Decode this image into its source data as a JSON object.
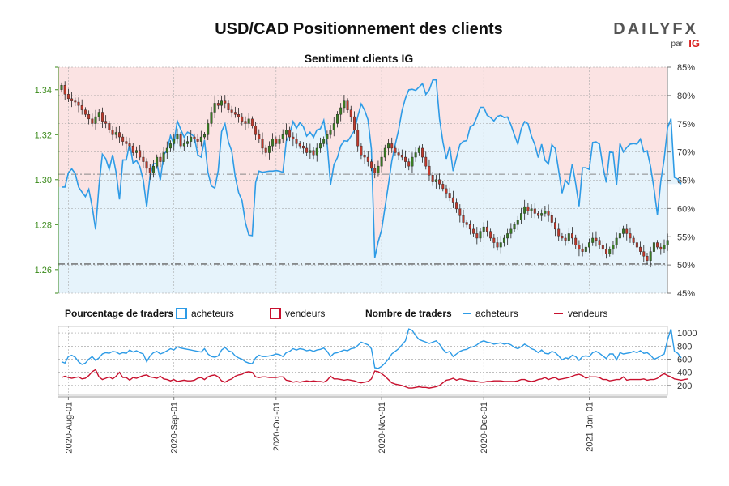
{
  "header": {
    "title": "USD/CAD Positionnement des clients",
    "logo_text": "DAILYFX",
    "logo_par": "par",
    "logo_ig": "IG"
  },
  "legend": {
    "pct_title": "Pourcentage de traders",
    "pct_buy": "acheteurs",
    "pct_sell": "vendeurs",
    "num_title": "Nombre de traders",
    "num_buy": "acheteurs",
    "num_sell": "vendeurs"
  },
  "colors": {
    "buy": "#2d9be6",
    "sell": "#c8102e",
    "up_candle": "#3a7d23",
    "down_candle": "#c0392b",
    "top_fill": "#fbe3e3",
    "bottom_fill": "#e6f3fb",
    "grid": "#c9c9c9",
    "price_axis": "#3a8a1a"
  },
  "chart_data": {
    "type": "candlestick",
    "title": "USD/CAD Positionnement des clients",
    "subtitle": "Sentiment clients IG",
    "x_labels": [
      "2020-Aug-01",
      "2020-Sep-01",
      "2020-Oct-01",
      "2020-Nov-01",
      "2020-Dec-01",
      "2021-Jan-01"
    ],
    "x_label_days": [
      2,
      33,
      63,
      94,
      124,
      155
    ],
    "total_days": 177,
    "price_axis": {
      "ticks": [
        "1.34",
        "1.32",
        "1.30",
        "1.28",
        "1.26"
      ],
      "tick_values": [
        1.34,
        1.32,
        1.3,
        1.28,
        1.26
      ],
      "range": [
        1.2495,
        1.35
      ]
    },
    "pct_axis": {
      "ticks": [
        "85%",
        "80%",
        "75%",
        "70%",
        "65%",
        "60%",
        "55%",
        "50%",
        "45%"
      ],
      "tick_values": [
        85,
        80,
        75,
        70,
        65,
        60,
        55,
        50,
        45
      ],
      "range": [
        45,
        85
      ]
    },
    "count_axis": {
      "ticks": [
        "1000",
        "800",
        "600",
        "400",
        "200"
      ],
      "tick_values": [
        1000,
        800,
        600,
        400,
        200
      ],
      "range": [
        50,
        1100
      ]
    },
    "reference_lines": {
      "price": [
        1.3024,
        1.2625
      ]
    },
    "series": [
      {
        "name": "USD/CAD",
        "kind": "candles",
        "close": [
          1.342,
          1.338,
          1.336,
          1.335,
          1.3345,
          1.333,
          1.331,
          1.329,
          1.327,
          1.325,
          1.328,
          1.33,
          1.326,
          1.325,
          1.322,
          1.32,
          1.321,
          1.319,
          1.317,
          1.316,
          1.315,
          1.312,
          1.313,
          1.31,
          1.308,
          1.305,
          1.303,
          1.306,
          1.31,
          1.308,
          1.312,
          1.314,
          1.316,
          1.318,
          1.32,
          1.315,
          1.316,
          1.317,
          1.319,
          1.318,
          1.317,
          1.319,
          1.32,
          1.325,
          1.33,
          1.334,
          1.333,
          1.335,
          1.334,
          1.331,
          1.33,
          1.329,
          1.328,
          1.326,
          1.325,
          1.327,
          1.324,
          1.32,
          1.318,
          1.314,
          1.312,
          1.315,
          1.318,
          1.316,
          1.318,
          1.32,
          1.322,
          1.319,
          1.318,
          1.316,
          1.315,
          1.314,
          1.312,
          1.313,
          1.311,
          1.314,
          1.316,
          1.318,
          1.32,
          1.322,
          1.325,
          1.329,
          1.332,
          1.335,
          1.331,
          1.328,
          1.322,
          1.315,
          1.311,
          1.31,
          1.308,
          1.305,
          1.303,
          1.306,
          1.31,
          1.314,
          1.316,
          1.314,
          1.312,
          1.311,
          1.31,
          1.308,
          1.306,
          1.31,
          1.312,
          1.314,
          1.31,
          1.306,
          1.302,
          1.299,
          1.3,
          1.298,
          1.296,
          1.294,
          1.292,
          1.29,
          1.287,
          1.284,
          1.281,
          1.28,
          1.278,
          1.276,
          1.274,
          1.277,
          1.279,
          1.277,
          1.274,
          1.272,
          1.27,
          1.272,
          1.274,
          1.276,
          1.278,
          1.28,
          1.282,
          1.285,
          1.288,
          1.286,
          1.287,
          1.285,
          1.284,
          1.285,
          1.286,
          1.284,
          1.281,
          1.278,
          1.275,
          1.274,
          1.273,
          1.276,
          1.274,
          1.271,
          1.269,
          1.268,
          1.27,
          1.272,
          1.274,
          1.273,
          1.271,
          1.269,
          1.267,
          1.269,
          1.271,
          1.274,
          1.276,
          1.278,
          1.276,
          1.274,
          1.272,
          1.27,
          1.268,
          1.266,
          1.264,
          1.268,
          1.272,
          1.27,
          1.269,
          1.271,
          1.273
        ]
      },
      {
        "name": "acheteurs %",
        "kind": "line",
        "axis": "pct",
        "values": [
          63.8,
          63.8,
          66.3,
          67.0,
          66.2,
          63.8,
          62.9,
          62.1,
          63.4,
          60.3,
          56.3,
          64.0,
          69.6,
          68.8,
          66.9,
          69.5,
          66.4,
          61.6,
          68.6,
          68.6,
          71.5,
          68.0,
          68.5,
          67.4,
          65.0,
          60.3,
          65.8,
          67.9,
          68.0,
          65.0,
          69.5,
          70.3,
          72.9,
          71.4,
          75.5,
          74.0,
          72.6,
          73.5,
          73.2,
          72.7,
          69.5,
          69.1,
          72.1,
          66.4,
          64.0,
          63.6,
          66.7,
          73.6,
          75.0,
          71.8,
          70.1,
          65.6,
          62.8,
          61.4,
          57.5,
          55.3,
          55.2,
          64.6,
          66.6,
          66.4,
          66.5,
          66.6,
          66.6,
          66.7,
          66.6,
          66.4,
          71.9,
          73.2,
          75.4,
          74.2,
          75.2,
          74.5,
          72.8,
          73.5,
          72.6,
          73.9,
          74.1,
          75.6,
          71.4,
          64.2,
          67.8,
          69.0,
          71.1,
          72.0,
          71.9,
          72.8,
          73.8,
          76.3,
          78.5,
          77.4,
          75.7,
          70.5,
          51.3,
          54.1,
          56.2,
          60.2,
          64.2,
          68.4,
          71.3,
          73.9,
          77.3,
          79.5,
          81.0,
          81.1,
          80.9,
          81.5,
          82.1,
          80.2,
          81.0,
          82.7,
          82.8,
          75.9,
          71.8,
          68.8,
          71.0,
          66.6,
          69.0,
          71.3,
          71.9,
          72.0,
          74.4,
          74.8,
          76.2,
          77.9,
          77.9,
          76.5,
          76.1,
          75.5,
          76.3,
          76.5,
          76.1,
          76.2,
          74.8,
          73.0,
          71.4,
          74.1,
          75.4,
          75.0,
          72.8,
          71.3,
          69.0,
          71.4,
          68.5,
          67.9,
          71.3,
          70.6,
          66.7,
          62.7,
          65.0,
          64.2,
          67.9,
          64.4,
          60.4,
          67.2,
          67.2,
          66.9,
          71.7,
          71.8,
          71.4,
          67.5,
          64.6,
          70.0,
          69.9,
          64.1,
          71.5,
          70.0,
          70.8,
          71.4,
          71.5,
          71.4,
          72.3,
          70.0,
          70.2,
          67.4,
          63.5,
          58.9,
          64.8,
          68.8,
          74.3,
          75.9,
          65.5,
          65.2,
          64.3
        ]
      },
      {
        "name": "acheteurs",
        "kind": "line",
        "axis": "count",
        "values": [
          560,
          540,
          640,
          660,
          630,
          560,
          520,
          540,
          600,
          640,
          580,
          620,
          680,
          700,
          690,
          720,
          710,
          680,
          700,
          690,
          740,
          710,
          730,
          700,
          680,
          560,
          650,
          700,
          720,
          680,
          700,
          730,
          760,
          740,
          790,
          770,
          760,
          750,
          740,
          730,
          720,
          710,
          760,
          680,
          640,
          630,
          650,
          740,
          780,
          730,
          710,
          650,
          620,
          600,
          560,
          540,
          530,
          620,
          660,
          640,
          640,
          650,
          660,
          680,
          670,
          640,
          700,
          720,
          760,
          740,
          760,
          750,
          730,
          740,
          720,
          740,
          750,
          770,
          720,
          640,
          690,
          700,
          720,
          740,
          730,
          760,
          770,
          810,
          860,
          840,
          820,
          760,
          470,
          460,
          490,
          540,
          600,
          680,
          720,
          760,
          820,
          880,
          1060,
          1040,
          960,
          900,
          880,
          860,
          840,
          860,
          880,
          830,
          750,
          700,
          720,
          640,
          680,
          720,
          740,
          750,
          780,
          790,
          820,
          860,
          880,
          860,
          850,
          830,
          840,
          850,
          830,
          840,
          820,
          780,
          760,
          790,
          830,
          800,
          760,
          740,
          700,
          740,
          690,
          680,
          720,
          700,
          650,
          590,
          620,
          610,
          660,
          640,
          580,
          640,
          650,
          640,
          700,
          720,
          690,
          650,
          610,
          680,
          680,
          590,
          700,
          680,
          690,
          700,
          720,
          700,
          730,
          690,
          700,
          660,
          600,
          620,
          650,
          680,
          900,
          1060,
          720,
          690,
          620
        ]
      },
      {
        "name": "vendeurs",
        "kind": "line",
        "axis": "count",
        "values": [
          320,
          340,
          320,
          310,
          320,
          330,
          300,
          310,
          350,
          410,
          440,
          330,
          290,
          310,
          330,
          300,
          340,
          400,
          320,
          320,
          280,
          320,
          310,
          330,
          350,
          360,
          330,
          320,
          310,
          340,
          300,
          290,
          270,
          290,
          260,
          270,
          280,
          270,
          270,
          280,
          310,
          320,
          290,
          330,
          350,
          360,
          330,
          270,
          250,
          280,
          300,
          340,
          360,
          370,
          400,
          410,
          400,
          330,
          320,
          330,
          330,
          320,
          320,
          320,
          330,
          330,
          280,
          270,
          250,
          260,
          250,
          260,
          270,
          260,
          270,
          260,
          260,
          250,
          280,
          340,
          300,
          300,
          290,
          280,
          290,
          280,
          270,
          250,
          240,
          250,
          260,
          300,
          420,
          410,
          380,
          340,
          290,
          240,
          220,
          210,
          200,
          180,
          160,
          160,
          170,
          180,
          170,
          170,
          160,
          170,
          180,
          200,
          240,
          280,
          290,
          310,
          280,
          300,
          290,
          280,
          270,
          270,
          260,
          250,
          250,
          260,
          260,
          270,
          270,
          270,
          260,
          260,
          260,
          260,
          270,
          290,
          290,
          270,
          260,
          270,
          290,
          300,
          320,
          290,
          310,
          320,
          290,
          300,
          310,
          320,
          340,
          360,
          370,
          350,
          310,
          330,
          330,
          330,
          320,
          290,
          290,
          270,
          280,
          290,
          290,
          330,
          280,
          290,
          290,
          290,
          290,
          300,
          280,
          290,
          290,
          310,
          350,
          380,
          350,
          330,
          300,
          290,
          280,
          290,
          300
        ]
      }
    ]
  }
}
